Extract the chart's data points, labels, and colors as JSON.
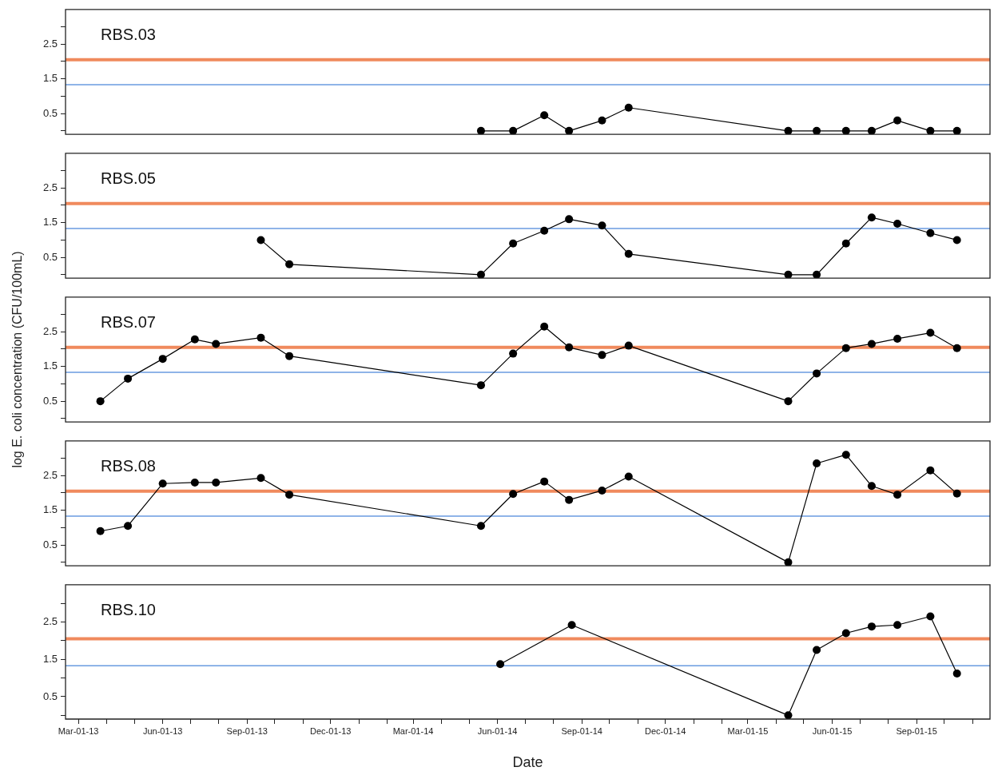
{
  "chart_data": [
    {
      "type": "line",
      "title": "RBS.03",
      "marker": "circle",
      "tick_labels": "y",
      "xlim": [
        "2013-02-15",
        "2015-11-20"
      ],
      "ylim": [
        -0.1,
        3.5
      ],
      "yticks": [
        {
          "value": 0,
          "label": null
        },
        0.5,
        {
          "value": 1,
          "label": null
        },
        1.5,
        {
          "value": 2,
          "label": null
        },
        2.5,
        {
          "value": 3,
          "label": null
        }
      ],
      "x": [
        "2014-05-14",
        "2014-06-18",
        "2014-07-22",
        "2014-08-18",
        "2014-09-23",
        "2014-10-22",
        "2015-04-14",
        "2015-05-15",
        "2015-06-16",
        "2015-07-14",
        "2015-08-11",
        "2015-09-16",
        "2015-10-15"
      ],
      "series": [
        {
          "color": "#000000",
          "values": [
            0,
            0,
            0.45,
            0,
            0.3,
            0.67,
            0,
            0,
            0,
            0,
            0.3,
            0,
            0
          ]
        }
      ],
      "ref_lines": [
        {
          "axis": "y",
          "value": 2.05,
          "color": "#f08a5d"
        },
        {
          "axis": "y",
          "value": 1.33,
          "color": "#6a9be0"
        }
      ]
    },
    {
      "type": "line",
      "title": "RBS.05",
      "marker": "circle",
      "tick_labels": "y",
      "xlim": [
        "2013-02-15",
        "2015-11-20"
      ],
      "ylim": [
        -0.1,
        3.5
      ],
      "yticks": [
        {
          "value": 0,
          "label": null
        },
        0.5,
        {
          "value": 1,
          "label": null
        },
        1.5,
        {
          "value": 2,
          "label": null
        },
        2.5,
        {
          "value": 3,
          "label": null
        }
      ],
      "x": [
        "2013-09-16",
        "2013-10-17",
        "2014-05-14",
        "2014-06-18",
        "2014-07-22",
        "2014-08-18",
        "2014-09-23",
        "2014-10-22",
        "2015-04-14",
        "2015-05-15",
        "2015-06-16",
        "2015-07-14",
        "2015-08-11",
        "2015-09-16",
        "2015-10-15"
      ],
      "series": [
        {
          "color": "#000000",
          "values": [
            1.0,
            0.3,
            0,
            0.9,
            1.27,
            1.6,
            1.42,
            0.6,
            0,
            0,
            0.9,
            1.65,
            1.47,
            1.2,
            1.0
          ]
        }
      ],
      "ref_lines": [
        {
          "axis": "y",
          "value": 2.05,
          "color": "#f08a5d"
        },
        {
          "axis": "y",
          "value": 1.33,
          "color": "#6a9be0"
        }
      ]
    },
    {
      "type": "line",
      "title": "RBS.07",
      "ylabel": "log E. coli concentration (CFU/100mL)",
      "marker": "circle",
      "tick_labels": "y",
      "xlim": [
        "2013-02-15",
        "2015-11-20"
      ],
      "ylim": [
        -0.1,
        3.5
      ],
      "yticks": [
        {
          "value": 0,
          "label": null
        },
        0.5,
        {
          "value": 1,
          "label": null
        },
        1.5,
        {
          "value": 2,
          "label": null
        },
        2.5,
        {
          "value": 3,
          "label": null
        }
      ],
      "x": [
        "2013-03-25",
        "2013-04-24",
        "2013-06-01",
        "2013-07-06",
        "2013-07-29",
        "2013-09-16",
        "2013-10-17",
        "2014-05-14",
        "2014-06-18",
        "2014-07-22",
        "2014-08-18",
        "2014-09-23",
        "2014-10-22",
        "2015-04-14",
        "2015-05-15",
        "2015-06-16",
        "2015-07-14",
        "2015-08-11",
        "2015-09-16",
        "2015-10-15"
      ],
      "series": [
        {
          "color": "#000000",
          "values": [
            0.5,
            1.15,
            1.72,
            2.28,
            2.15,
            2.33,
            1.8,
            0.96,
            1.87,
            2.65,
            2.05,
            1.83,
            2.1,
            0.5,
            1.3,
            2.03,
            2.15,
            2.3,
            2.47,
            2.03
          ]
        }
      ],
      "ref_lines": [
        {
          "axis": "y",
          "value": 2.05,
          "color": "#f08a5d"
        },
        {
          "axis": "y",
          "value": 1.33,
          "color": "#6a9be0"
        }
      ]
    },
    {
      "type": "line",
      "title": "RBS.08",
      "marker": "circle",
      "tick_labels": "y",
      "xlim": [
        "2013-02-15",
        "2015-11-20"
      ],
      "ylim": [
        -0.1,
        3.5
      ],
      "yticks": [
        {
          "value": 0,
          "label": null
        },
        0.5,
        {
          "value": 1,
          "label": null
        },
        1.5,
        {
          "value": 2,
          "label": null
        },
        2.5,
        {
          "value": 3,
          "label": null
        }
      ],
      "x": [
        "2013-03-25",
        "2013-04-24",
        "2013-06-01",
        "2013-07-06",
        "2013-07-29",
        "2013-09-16",
        "2013-10-17",
        "2014-05-14",
        "2014-06-18",
        "2014-07-22",
        "2014-08-18",
        "2014-09-23",
        "2014-10-22",
        "2015-04-14",
        "2015-05-15",
        "2015-06-16",
        "2015-07-14",
        "2015-08-11",
        "2015-09-16",
        "2015-10-15"
      ],
      "series": [
        {
          "color": "#000000",
          "values": [
            0.9,
            1.05,
            2.27,
            2.3,
            2.3,
            2.43,
            1.95,
            1.05,
            1.97,
            2.33,
            1.8,
            2.07,
            2.47,
            0,
            2.85,
            3.1,
            2.2,
            1.95,
            2.65,
            1.98
          ]
        }
      ],
      "ref_lines": [
        {
          "axis": "y",
          "value": 2.05,
          "color": "#f08a5d"
        },
        {
          "axis": "y",
          "value": 1.33,
          "color": "#6a9be0"
        }
      ]
    },
    {
      "type": "line",
      "title": "RBS.10",
      "xlabel": "Date",
      "marker": "circle",
      "xlim": [
        "2013-02-15",
        "2015-11-20"
      ],
      "ylim": [
        -0.1,
        3.5
      ],
      "yticks": [
        {
          "value": 0,
          "label": null
        },
        0.5,
        {
          "value": 1,
          "label": null
        },
        1.5,
        {
          "value": 2,
          "label": null
        },
        2.5,
        {
          "value": 3,
          "label": null
        }
      ],
      "xticks": [
        {
          "value": "2013-03-01",
          "label": "Mar-01-13"
        },
        {
          "value": "2013-04-01",
          "label": null
        },
        {
          "value": "2013-05-01",
          "label": null
        },
        {
          "value": "2013-06-01",
          "label": "Jun-01-13"
        },
        {
          "value": "2013-07-01",
          "label": null
        },
        {
          "value": "2013-08-01",
          "label": null
        },
        {
          "value": "2013-09-01",
          "label": "Sep-01-13"
        },
        {
          "value": "2013-10-01",
          "label": null
        },
        {
          "value": "2013-11-01",
          "label": null
        },
        {
          "value": "2013-12-01",
          "label": "Dec-01-13"
        },
        {
          "value": "2014-01-01",
          "label": null
        },
        {
          "value": "2014-02-01",
          "label": null
        },
        {
          "value": "2014-03-01",
          "label": "Mar-01-14"
        },
        {
          "value": "2014-04-01",
          "label": null
        },
        {
          "value": "2014-05-01",
          "label": null
        },
        {
          "value": "2014-06-01",
          "label": "Jun-01-14"
        },
        {
          "value": "2014-07-01",
          "label": null
        },
        {
          "value": "2014-08-01",
          "label": null
        },
        {
          "value": "2014-09-01",
          "label": "Sep-01-14"
        },
        {
          "value": "2014-10-01",
          "label": null
        },
        {
          "value": "2014-11-01",
          "label": null
        },
        {
          "value": "2014-12-01",
          "label": "Dec-01-14"
        },
        {
          "value": "2015-01-01",
          "label": null
        },
        {
          "value": "2015-02-01",
          "label": null
        },
        {
          "value": "2015-03-01",
          "label": "Mar-01-15"
        },
        {
          "value": "2015-04-01",
          "label": null
        },
        {
          "value": "2015-05-01",
          "label": null
        },
        {
          "value": "2015-06-01",
          "label": "Jun-01-15"
        },
        {
          "value": "2015-07-01",
          "label": null
        },
        {
          "value": "2015-08-01",
          "label": null
        },
        {
          "value": "2015-09-01",
          "label": "Sep-01-15"
        },
        {
          "value": "2015-10-01",
          "label": null
        },
        {
          "value": "2015-11-01",
          "label": null
        }
      ],
      "x": [
        "2014-06-04",
        "2014-08-21",
        "2015-04-14",
        "2015-05-15",
        "2015-06-16",
        "2015-07-14",
        "2015-08-11",
        "2015-09-16",
        "2015-10-15"
      ],
      "series": [
        {
          "color": "#000000",
          "values": [
            1.37,
            2.42,
            0,
            1.75,
            2.2,
            2.38,
            2.42,
            2.65,
            1.12
          ]
        }
      ],
      "ref_lines": [
        {
          "axis": "y",
          "value": 2.05,
          "color": "#f08a5d"
        },
        {
          "axis": "y",
          "value": 1.33,
          "color": "#6a9be0"
        }
      ]
    }
  ]
}
